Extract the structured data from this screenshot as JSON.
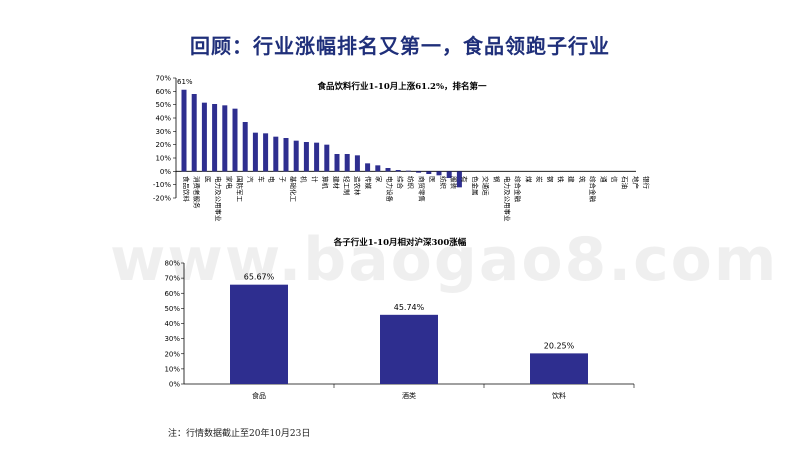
{
  "page": {
    "title": "回顾：行业涨幅排名又第一，食品领跑子行业",
    "watermark": "www.baogao8.com",
    "note": "注：行情数据截止至20年10月23日"
  },
  "chart_data": [
    {
      "type": "bar",
      "title": "食品饮料行业1-10月上涨61.2%，排名第一",
      "top_label": "61%",
      "ylim": [
        -20,
        70
      ],
      "yticks": [
        "-20%",
        "-10%",
        "0%",
        "10%",
        "20%",
        "30%",
        "40%",
        "50%",
        "60%",
        "70%"
      ],
      "categories": [
        "食品饮料",
        "休闲服务",
        "医药生物",
        "电气设备",
        "家用电器",
        "有色金属",
        "国防军工",
        "电子",
        "计算机",
        "化工",
        "建筑材料",
        "机械设备",
        "农林牧渔",
        "传媒",
        "综合",
        "轻工制造",
        "公用事业",
        "汽车",
        "通信",
        "交通运输",
        "纺织服装",
        "建筑装饰",
        "商业贸易",
        "非银金融",
        "钢铁",
        "房地产",
        "采掘",
        "银行"
      ],
      "visible_labels": [
        "食品饮料",
        "消费者服务",
        "医",
        "电力及公用事业",
        "家电",
        "国防军工",
        "汽",
        "车",
        "电",
        "子",
        "基础化工",
        "机",
        "计",
        "算机",
        "建材",
        "轻工制",
        "造农林",
        "传媒",
        "家",
        "电力设备",
        "综合",
        "纺织",
        "商贸零售",
        "医",
        "纺织",
        "服装",
        "有",
        "色金属",
        "交通运",
        "钢",
        "电力及公用事业",
        "综合金融",
        "煤",
        "炭",
        "钢",
        "铁",
        "建",
        "筑",
        "综合金融",
        "通",
        "信",
        "石油",
        "地产",
        "银行"
      ],
      "values": [
        61.2,
        58,
        51.5,
        50.5,
        49.5,
        47,
        37,
        29,
        28.5,
        26,
        25,
        23,
        22,
        21.5,
        20,
        13,
        13,
        12,
        6,
        4.5,
        2.5,
        1,
        0.5,
        -1,
        -2,
        -3,
        -5,
        -12
      ],
      "color": "#2e2e8f"
    },
    {
      "type": "bar",
      "title": "各子行业1-10月相对沪深300涨幅",
      "ylim": [
        0,
        80
      ],
      "yticks": [
        "0%",
        "10%",
        "20%",
        "30%",
        "40%",
        "50%",
        "60%",
        "70%",
        "80%"
      ],
      "categories": [
        "食品",
        "酒类",
        "饮料"
      ],
      "values": [
        65.67,
        45.74,
        20.25
      ],
      "labels": [
        "65.67%",
        "45.74%",
        "20.25%"
      ],
      "color": "#2e2e8f"
    }
  ]
}
